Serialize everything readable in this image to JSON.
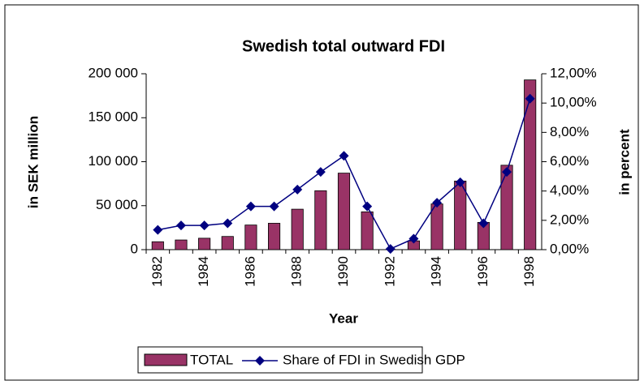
{
  "chart_data": {
    "type": "bar_line",
    "title": "Swedish total outward FDI",
    "x_label": "Year",
    "y_label": "in SEK million",
    "y2_label": "in percent",
    "categories": [
      "1982",
      null,
      "1984",
      null,
      "1986",
      null,
      "1988",
      null,
      "1990",
      null,
      "1992",
      null,
      "1994",
      null,
      "1996",
      null,
      "1998"
    ],
    "series": [
      {
        "name": "TOTAL",
        "type": "bar",
        "color": "#993366",
        "values": [
          9000,
          11000,
          13000,
          15000,
          28000,
          30000,
          46000,
          67000,
          87000,
          43000,
          0,
          10000,
          52000,
          78000,
          31000,
          96000,
          193000
        ]
      },
      {
        "name": "Share of FDI in Swedish GDP",
        "type": "line",
        "color": "#000080",
        "axis": "y2",
        "values": [
          1.35,
          1.65,
          1.65,
          1.8,
          2.95,
          2.95,
          4.1,
          5.3,
          6.4,
          2.95,
          0.05,
          0.75,
          3.2,
          4.6,
          1.8,
          5.3,
          10.3
        ]
      }
    ],
    "ylim": [
      0,
      200000
    ],
    "yticks": [
      0,
      {
        "value": 50000,
        "label": "50 000"
      },
      {
        "value": 100000,
        "label": "100 000"
      },
      {
        "value": 150000,
        "label": "150 000"
      },
      {
        "value": 200000,
        "label": "200 000"
      }
    ],
    "y2lim": [
      0,
      12
    ],
    "y2ticks": [
      {
        "value": 0,
        "label": "0,00%"
      },
      {
        "value": 2,
        "label": "2,00%"
      },
      {
        "value": 4,
        "label": "4,00%"
      },
      {
        "value": 6,
        "label": "6,00%"
      },
      {
        "value": 8,
        "label": "8,00%"
      },
      {
        "value": 10,
        "label": "10,00%"
      },
      {
        "value": 12,
        "label": "12,00%"
      }
    ]
  }
}
